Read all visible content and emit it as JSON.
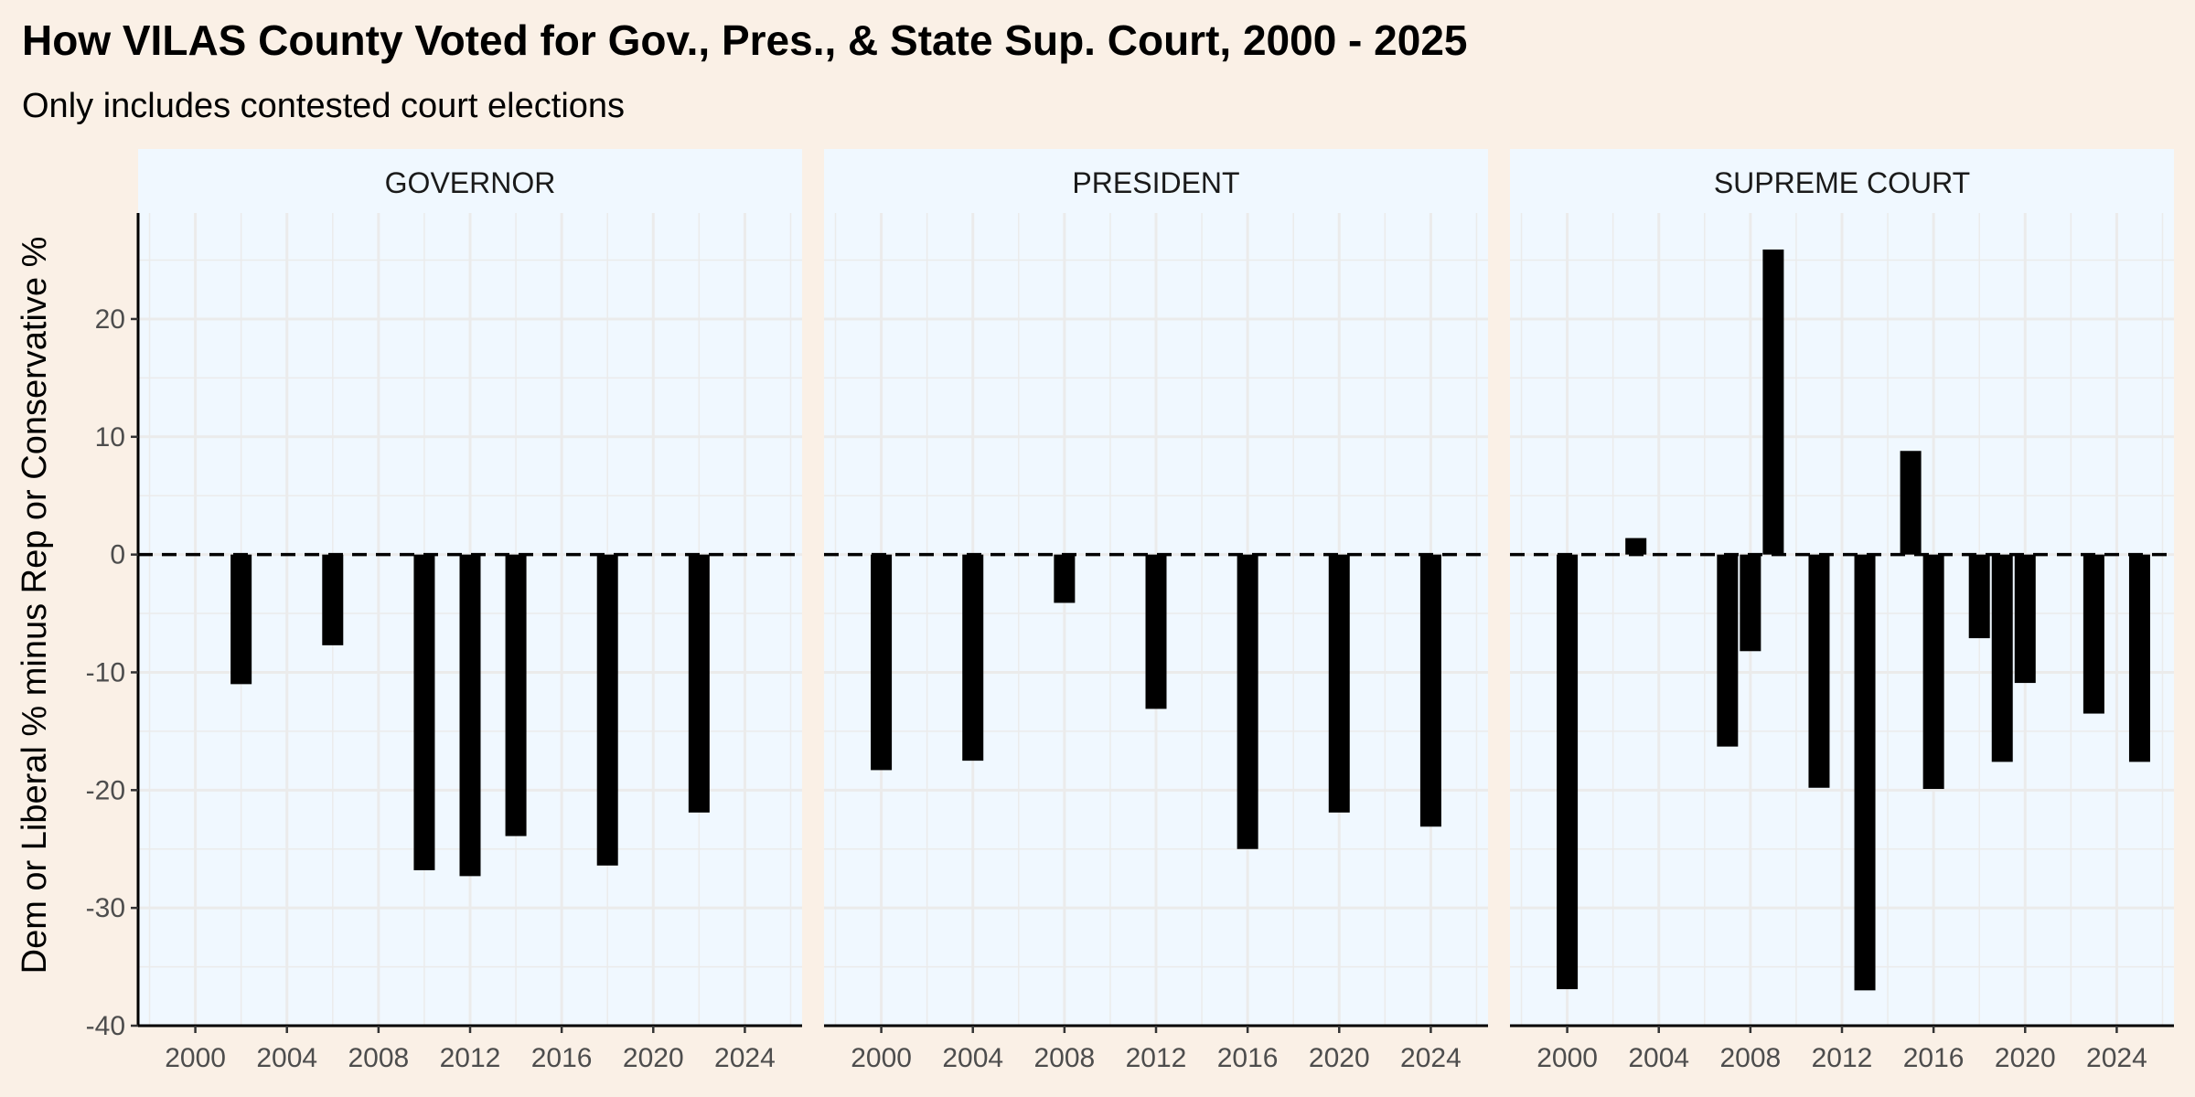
{
  "chart_data": {
    "type": "bar",
    "title": "How VILAS County Voted for Gov., Pres., & State Sup. Court, 2000 - 2025",
    "subtitle": "Only includes contested court elections",
    "xlabel": "",
    "ylabel": "Dem or Liberal % minus Rep or Conservative %",
    "xlim": [
      1997.5,
      2026.5
    ],
    "ylim": [
      -40,
      29
    ],
    "x_ticks": [
      2000,
      2004,
      2008,
      2012,
      2016,
      2020,
      2024
    ],
    "y_ticks": [
      -40,
      -30,
      -20,
      -10,
      0,
      10,
      20
    ],
    "reference_line": {
      "y": 0,
      "style": "dashed"
    },
    "grid": true,
    "bar_color": "#000000",
    "panel_background": "#f0f8ff",
    "page_background": "#faf0e6",
    "panels": [
      {
        "name": "GOVERNOR",
        "x": [
          2002,
          2006,
          2010,
          2012,
          2014,
          2018,
          2022
        ],
        "values": [
          -11.0,
          -7.7,
          -26.8,
          -27.3,
          -23.9,
          -26.4,
          -21.9
        ]
      },
      {
        "name": "PRESIDENT",
        "x": [
          2000,
          2004,
          2008,
          2012,
          2016,
          2020,
          2024
        ],
        "values": [
          -18.3,
          -17.5,
          -4.1,
          -13.1,
          -25.0,
          -21.9,
          -23.1
        ]
      },
      {
        "name": "SUPREME COURT",
        "x": [
          2000,
          2003,
          2007,
          2008,
          2009,
          2011,
          2013,
          2015,
          2016,
          2018,
          2019,
          2020,
          2023,
          2025
        ],
        "values": [
          -36.9,
          1.4,
          -16.3,
          -8.2,
          25.9,
          -19.8,
          -37.0,
          8.8,
          -19.9,
          -7.1,
          -17.6,
          -10.9,
          -13.5,
          -17.6
        ]
      }
    ]
  }
}
